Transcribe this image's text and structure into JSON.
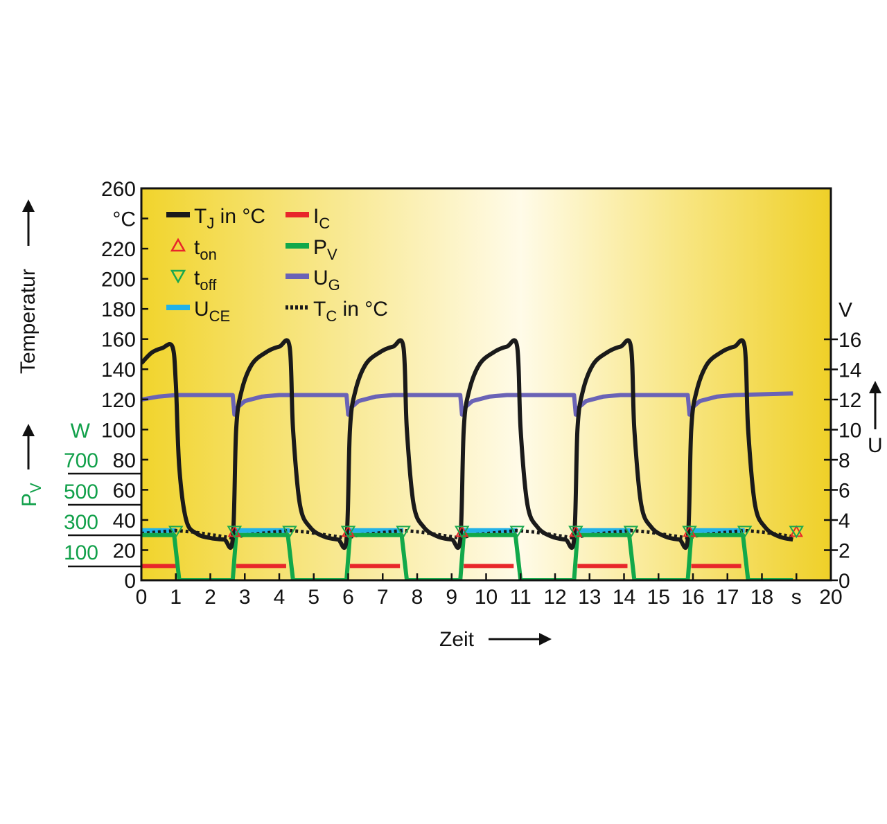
{
  "chart_data": {
    "type": "line",
    "xlabel": "Zeit",
    "ylabel": "Temperatur",
    "ylabel_unit": "°C",
    "y2label": "U",
    "y2label_unit": "V",
    "y3label": {
      "base": "P",
      "sub": "V"
    },
    "y3label_unit": "W",
    "xlim": [
      0,
      20
    ],
    "ylim": [
      0,
      260
    ],
    "y2lim": [
      0,
      16
    ],
    "x_ticks": [
      "0",
      "1",
      "2",
      "3",
      "4",
      "5",
      "6",
      "7",
      "8",
      "9",
      "10",
      "11",
      "12",
      "13",
      "14",
      "15",
      "16",
      "17",
      "18",
      "s",
      "20"
    ],
    "y_ticks": [
      "260",
      "°C",
      "220",
      "200",
      "180",
      "160",
      "140",
      "120",
      "100",
      "80",
      "60",
      "40",
      "20",
      "0"
    ],
    "y2_ticks": [
      "V",
      "16",
      "14",
      "12",
      "10",
      "8",
      "6",
      "4",
      "2",
      "0"
    ],
    "y3_ticks": [
      "W",
      "700",
      "500",
      "300",
      "100"
    ],
    "cycle_starts": [
      -0.7,
      2.65,
      5.95,
      9.25,
      12.55,
      15.85
    ],
    "switch_on_times": [
      2.7,
      6.0,
      9.3,
      12.6,
      15.9,
      19.0
    ],
    "switch_off_times": [
      1.0,
      4.3,
      7.6,
      10.9,
      14.2,
      17.5
    ],
    "legend": [
      {
        "base": "T",
        "sub": "J",
        "suffix": " in °C",
        "color": "#1a1a1a",
        "style": "line"
      },
      {
        "base": "t",
        "sub": "on",
        "suffix": "",
        "color": "#e8262a",
        "style": "triangle-up"
      },
      {
        "base": "t",
        "sub": "off",
        "suffix": "",
        "color": "#19a84e",
        "style": "triangle-down"
      },
      {
        "base": "U",
        "sub": "CE",
        "suffix": "",
        "color": "#22b2e8",
        "style": "line"
      },
      {
        "base": "I",
        "sub": "C",
        "suffix": "",
        "color": "#e8262a",
        "style": "line"
      },
      {
        "base": "P",
        "sub": "V",
        "suffix": "",
        "color": "#12a84a",
        "style": "line"
      },
      {
        "base": "U",
        "sub": "G",
        "suffix": "",
        "color": "#6a63b6",
        "style": "line"
      },
      {
        "base": "T",
        "sub": "C",
        "suffix": " in °C",
        "color": "#1a1a1a",
        "style": "dotted"
      }
    ],
    "series": [
      {
        "name": "TJ in °C",
        "axis": "left",
        "desc": "junction temperature, rises to 155 °C while on, decays to about 27 °C while off",
        "x": [
          0,
          0.3,
          0.6,
          0.9,
          1.0,
          1.1,
          1.3,
          1.6,
          2.0,
          2.4,
          2.65,
          2.75,
          2.9,
          3.2,
          3.6,
          4.0,
          4.3,
          4.4,
          4.6,
          4.9,
          5.3,
          5.7,
          5.95,
          6.05,
          6.2,
          6.5,
          6.9,
          7.3,
          7.6,
          7.7,
          7.9,
          8.2,
          8.6,
          9.0,
          9.25,
          9.35,
          9.5,
          9.8,
          10.2,
          10.6,
          10.9,
          11.0,
          11.2,
          11.5,
          11.9,
          12.3,
          12.55,
          12.65,
          12.8,
          13.1,
          13.5,
          13.9,
          14.2,
          14.3,
          14.5,
          14.8,
          15.2,
          15.6,
          15.85,
          15.95,
          16.1,
          16.4,
          16.8,
          17.2,
          17.5,
          17.6,
          17.8,
          18.1,
          18.5,
          18.9
        ],
        "y": [
          144,
          151,
          154,
          155,
          130,
          75,
          40,
          31,
          28,
          27,
          27,
          100,
          125,
          143,
          151,
          155,
          155,
          100,
          50,
          35,
          29,
          27,
          27,
          100,
          125,
          143,
          151,
          155,
          155,
          100,
          50,
          35,
          29,
          27,
          27,
          100,
          125,
          143,
          151,
          155,
          155,
          100,
          50,
          35,
          29,
          27,
          27,
          100,
          125,
          143,
          151,
          155,
          155,
          100,
          50,
          35,
          29,
          27,
          27,
          100,
          125,
          143,
          151,
          155,
          155,
          100,
          50,
          35,
          29,
          27
        ]
      },
      {
        "name": "TC in °C",
        "axis": "left",
        "desc": "case temperature, dotted, about 27–33 °C",
        "x": [
          0,
          1.0,
          1.5,
          2.65,
          3.0,
          4.3,
          4.8,
          5.95,
          6.3,
          7.6,
          8.1,
          9.25,
          9.6,
          10.9,
          11.4,
          12.55,
          12.9,
          14.2,
          14.7,
          15.85,
          16.2,
          17.5,
          18.0,
          18.9
        ],
        "y": [
          31,
          33,
          32,
          28,
          30,
          33,
          32,
          28,
          30,
          33,
          32,
          28,
          30,
          33,
          32,
          28,
          30,
          33,
          32,
          28,
          30,
          33,
          32,
          29
        ]
      },
      {
        "name": "UG",
        "axis": "right",
        "desc": "gate voltage about 12.2–12.5 V with dips to 11 V at each switch-on",
        "x": [
          0,
          0.5,
          1.0,
          2.65,
          2.7,
          2.75,
          3.0,
          3.5,
          4.0,
          5.95,
          6.0,
          6.05,
          6.3,
          6.8,
          7.3,
          9.25,
          9.3,
          9.35,
          9.6,
          10.1,
          10.6,
          12.55,
          12.6,
          12.65,
          12.9,
          13.4,
          13.9,
          15.85,
          15.9,
          15.95,
          16.2,
          16.7,
          17.2,
          18.9
        ],
        "y": [
          12.0,
          12.2,
          12.3,
          12.3,
          11.0,
          11.4,
          11.9,
          12.2,
          12.3,
          12.3,
          11.0,
          11.4,
          11.9,
          12.2,
          12.3,
          12.3,
          11.0,
          11.4,
          11.9,
          12.2,
          12.3,
          12.3,
          11.0,
          11.4,
          11.9,
          12.2,
          12.3,
          12.3,
          11.0,
          11.4,
          11.9,
          12.2,
          12.3,
          12.4
        ]
      },
      {
        "name": "UCE",
        "axis": "right",
        "desc": "collector-emitter voltage, about 3.3 V while on",
        "segments": [
          [
            0,
            1.0
          ],
          [
            2.65,
            4.3
          ],
          [
            5.95,
            7.6
          ],
          [
            9.25,
            10.9
          ],
          [
            12.55,
            14.2
          ],
          [
            15.85,
            17.5
          ]
        ],
        "level": 3.3
      },
      {
        "name": "PV",
        "axis": "right",
        "desc": "power dissipation, square wave 0 ↔ 3 V-equivalent",
        "x": [
          0,
          0.95,
          1.1,
          2.65,
          2.75,
          4.25,
          4.4,
          5.95,
          6.05,
          7.55,
          7.7,
          9.25,
          9.35,
          10.85,
          11.0,
          12.55,
          12.65,
          14.15,
          14.3,
          15.85,
          15.95,
          17.45,
          17.6,
          18.9
        ],
        "y": [
          3.0,
          3.0,
          0.0,
          0.0,
          3.0,
          3.0,
          0.0,
          0.0,
          3.0,
          3.0,
          0.0,
          0.0,
          3.0,
          3.0,
          0.0,
          0.0,
          3.0,
          3.0,
          0.0,
          0.0,
          3.0,
          3.0,
          0.0,
          0.0
        ]
      },
      {
        "name": "IC",
        "axis": "right",
        "desc": "collector current level while on",
        "segments": [
          [
            0,
            1.0
          ],
          [
            2.75,
            4.2
          ],
          [
            6.05,
            7.5
          ],
          [
            9.35,
            10.8
          ],
          [
            12.65,
            14.1
          ],
          [
            15.95,
            17.4
          ]
        ],
        "level": 0.95
      }
    ]
  }
}
